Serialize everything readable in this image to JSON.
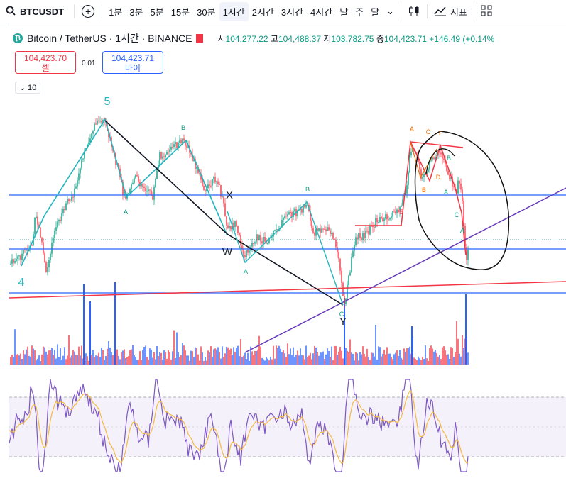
{
  "toolbar": {
    "symbol": "BTCUSDT",
    "intervals": [
      "1분",
      "3분",
      "5분",
      "15분",
      "30분",
      "1시간",
      "2시간",
      "3시간",
      "4시간",
      "날",
      "주",
      "달"
    ],
    "active_interval": "1시간",
    "indicators_label": "지표"
  },
  "legend": {
    "title": "Bitcoin / TetherUS · 1시간 · BINANCE",
    "open_label": "시",
    "open": "104,277.22",
    "high_label": "고",
    "high": "104,488.37",
    "low_label": "저",
    "low": "103,782.75",
    "close_label": "종",
    "close": "104,423.71",
    "change": "+146.49 (+0.14%"
  },
  "trade": {
    "sell_price": "104,423.70",
    "sell_label": "셀",
    "spread": "0.01",
    "buy_price": "104,423.71",
    "buy_label": "바이"
  },
  "indicator_toggle": {
    "count": "10"
  },
  "annotations": {
    "wave_5": "5",
    "wave_4": "4",
    "x": "X",
    "w": "W",
    "y": "Y",
    "abc": [
      "A",
      "B",
      "C",
      "D",
      "E"
    ]
  },
  "colors": {
    "up": "#089981",
    "down": "#f23645",
    "blue_line": "#2962ff",
    "purple": "#673ab7",
    "teal": "#22b5bf",
    "rsi": "#7e57c2",
    "rsi_ma": "#f5b942"
  }
}
